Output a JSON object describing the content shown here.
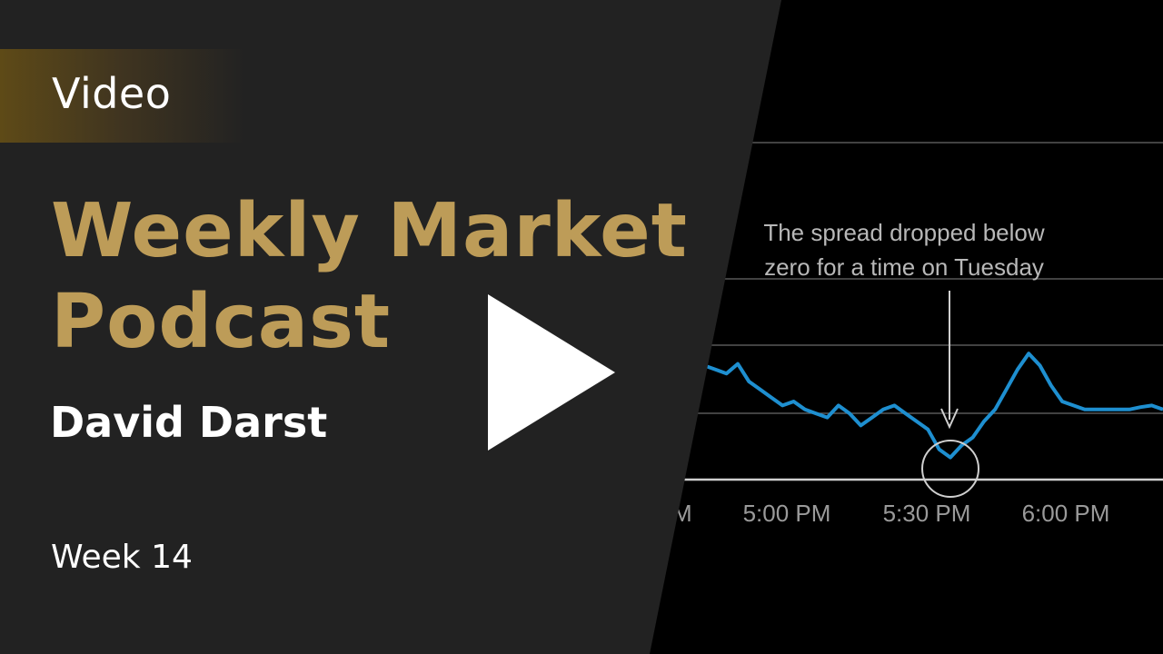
{
  "tag": "Video",
  "title_lines": [
    "Weekly Market",
    "Podcast"
  ],
  "author": "David Darst",
  "week": "Week 14",
  "colors": {
    "gold": "#bd9c58",
    "panel": "#222222",
    "series": "#1e8fd0"
  },
  "chart_data": {
    "type": "line",
    "x_ticks": [
      "M",
      "5:00 PM",
      "5:30 PM",
      "6:00 PM"
    ],
    "annotation": [
      "The  spread dropped below",
      "zero for a time on Tuesday"
    ],
    "grid": true,
    "series": [
      {
        "values": [
          0.6,
          0.55,
          0.5,
          0.62,
          0.4,
          0.3,
          0.2,
          0.1,
          0.15,
          0.05,
          0.0,
          -0.05,
          0.1,
          0.0,
          -0.15,
          -0.05,
          0.05,
          0.1,
          0.0,
          -0.1,
          -0.2,
          -0.45,
          -0.55,
          -0.4,
          -0.3,
          -0.1,
          0.05,
          0.3,
          0.55,
          0.75,
          0.6,
          0.35,
          0.15,
          0.1,
          0.05,
          0.05,
          0.05,
          0.05,
          0.05,
          0.08,
          0.1,
          0.05
        ]
      }
    ]
  }
}
